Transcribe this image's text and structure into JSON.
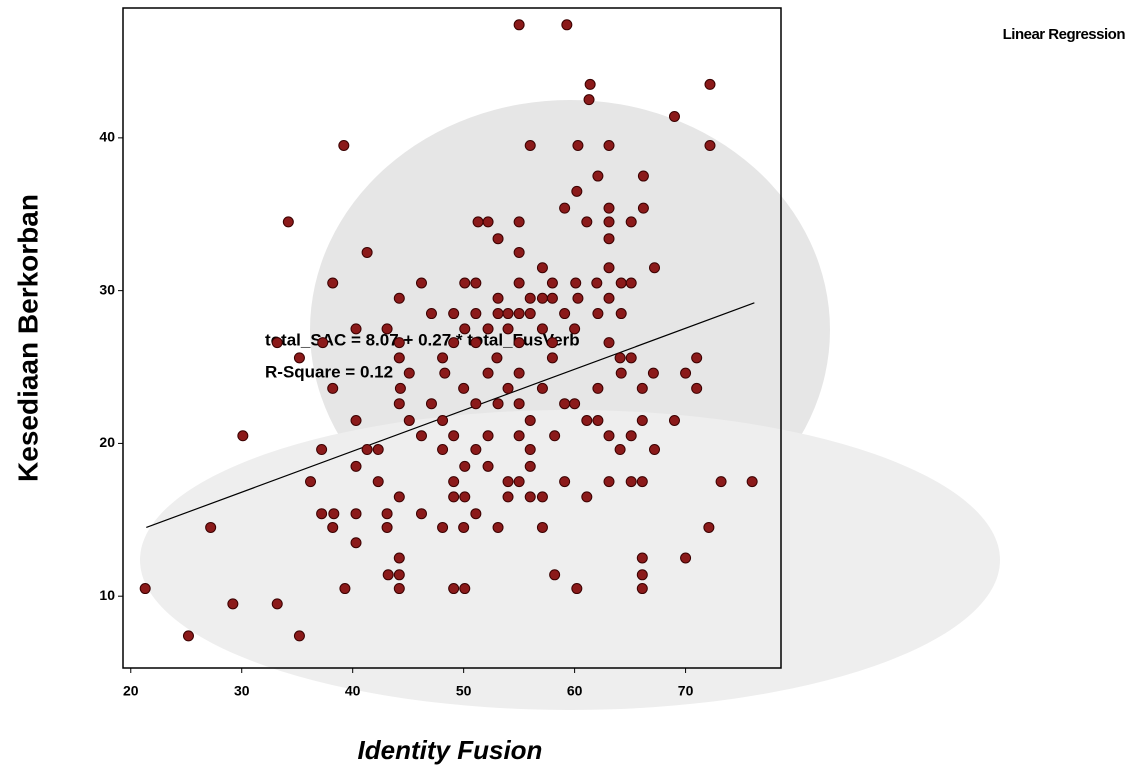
{
  "chart_data": {
    "type": "scatter",
    "title": "Linear Regression",
    "x_label": "Identity Fusion",
    "y_label": "Kesediaan Berkorban",
    "annotations": [
      "total_SAC = 8.07 + 0.27 * total_FusVerb",
      "R-Square = 0.12"
    ],
    "color": "#8b1a1a",
    "xlim": [
      19.3,
      78.6
    ],
    "ylim": [
      5.3,
      48.5
    ],
    "xticks": [
      20,
      30,
      40,
      50,
      60,
      70
    ],
    "yticks": [
      10,
      20,
      30,
      40
    ],
    "fit": {
      "x": [
        21.4,
        76.2
      ],
      "values": [
        14.5,
        29.2
      ]
    },
    "x": [
      55.0,
      59.3,
      61.4,
      61.3,
      72.2,
      69.0,
      39.2,
      56.0,
      60.3,
      63.1,
      72.2,
      62.1,
      66.2,
      60.2,
      59.1,
      63.1,
      66.2,
      34.2,
      51.3,
      52.2,
      55.0,
      61.1,
      63.1,
      65.1,
      53.1,
      63.1,
      55.0,
      41.3,
      57.1,
      63.1,
      67.2,
      38.2,
      46.2,
      50.1,
      51.1,
      55.0,
      58.0,
      60.1,
      62.0,
      64.2,
      65.1,
      44.2,
      53.1,
      56.0,
      57.1,
      58.0,
      60.3,
      63.1,
      47.1,
      49.1,
      51.1,
      53.1,
      54.0,
      55.0,
      56.0,
      59.1,
      62.1,
      64.2,
      40.3,
      43.1,
      50.1,
      52.2,
      54.0,
      57.1,
      60.0,
      33.2,
      37.3,
      44.2,
      49.1,
      51.1,
      55.0,
      58.0,
      63.1,
      35.2,
      44.2,
      48.1,
      53.0,
      58.0,
      64.1,
      65.1,
      71.0,
      45.1,
      48.3,
      52.2,
      55.0,
      64.2,
      67.1,
      70.0,
      38.2,
      44.3,
      50.0,
      54.0,
      57.1,
      62.1,
      66.1,
      71.0,
      44.2,
      47.1,
      51.1,
      53.1,
      55.0,
      59.1,
      60.0,
      40.3,
      45.1,
      48.1,
      56.0,
      61.1,
      62.1,
      66.1,
      69.0,
      30.1,
      46.2,
      49.1,
      52.2,
      55.0,
      58.2,
      63.1,
      65.1,
      37.2,
      41.3,
      42.3,
      48.1,
      51.1,
      56.0,
      64.1,
      67.2,
      40.3,
      50.1,
      52.2,
      56.0,
      36.2,
      42.3,
      49.1,
      54.0,
      55.0,
      59.1,
      63.1,
      65.1,
      66.1,
      73.2,
      76.0,
      44.2,
      49.1,
      50.1,
      54.0,
      56.0,
      57.1,
      61.1,
      37.2,
      38.3,
      40.3,
      43.1,
      46.2,
      51.1,
      27.2,
      38.2,
      43.1,
      48.1,
      50.0,
      53.1,
      57.1,
      72.1,
      40.3,
      44.2,
      66.1,
      70.0,
      43.2,
      44.2,
      58.2,
      66.1,
      21.3,
      39.3,
      44.2,
      49.1,
      50.1,
      60.2,
      66.1,
      29.2,
      33.2,
      25.2,
      35.2
    ],
    "values": [
      47.4,
      47.4,
      43.5,
      42.5,
      43.5,
      41.4,
      39.5,
      39.5,
      39.5,
      39.5,
      39.5,
      37.5,
      37.5,
      36.5,
      35.4,
      35.4,
      35.4,
      34.5,
      34.5,
      34.5,
      34.5,
      34.5,
      34.5,
      34.5,
      33.4,
      33.4,
      32.5,
      32.5,
      31.5,
      31.5,
      31.5,
      30.5,
      30.5,
      30.5,
      30.5,
      30.5,
      30.5,
      30.5,
      30.5,
      30.5,
      30.5,
      29.5,
      29.5,
      29.5,
      29.5,
      29.5,
      29.5,
      29.5,
      28.5,
      28.5,
      28.5,
      28.5,
      28.5,
      28.5,
      28.5,
      28.5,
      28.5,
      28.5,
      27.5,
      27.5,
      27.5,
      27.5,
      27.5,
      27.5,
      27.5,
      26.6,
      26.6,
      26.6,
      26.6,
      26.6,
      26.6,
      26.6,
      26.6,
      25.6,
      25.6,
      25.6,
      25.6,
      25.6,
      25.6,
      25.6,
      25.6,
      24.6,
      24.6,
      24.6,
      24.6,
      24.6,
      24.6,
      24.6,
      23.6,
      23.6,
      23.6,
      23.6,
      23.6,
      23.6,
      23.6,
      23.6,
      22.6,
      22.6,
      22.6,
      22.6,
      22.6,
      22.6,
      22.6,
      21.5,
      21.5,
      21.5,
      21.5,
      21.5,
      21.5,
      21.5,
      21.5,
      20.5,
      20.5,
      20.5,
      20.5,
      20.5,
      20.5,
      20.5,
      20.5,
      19.6,
      19.6,
      19.6,
      19.6,
      19.6,
      19.6,
      19.6,
      19.6,
      18.5,
      18.5,
      18.5,
      18.5,
      17.5,
      17.5,
      17.5,
      17.5,
      17.5,
      17.5,
      17.5,
      17.5,
      17.5,
      17.5,
      17.5,
      16.5,
      16.5,
      16.5,
      16.5,
      16.5,
      16.5,
      16.5,
      15.4,
      15.4,
      15.4,
      15.4,
      15.4,
      15.4,
      14.5,
      14.5,
      14.5,
      14.5,
      14.5,
      14.5,
      14.5,
      14.5,
      13.5,
      12.5,
      12.5,
      12.5,
      11.4,
      11.4,
      11.4,
      11.4,
      10.5,
      10.5,
      10.5,
      10.5,
      10.5,
      10.5,
      10.5,
      9.5,
      9.5,
      7.4,
      7.4
    ]
  }
}
